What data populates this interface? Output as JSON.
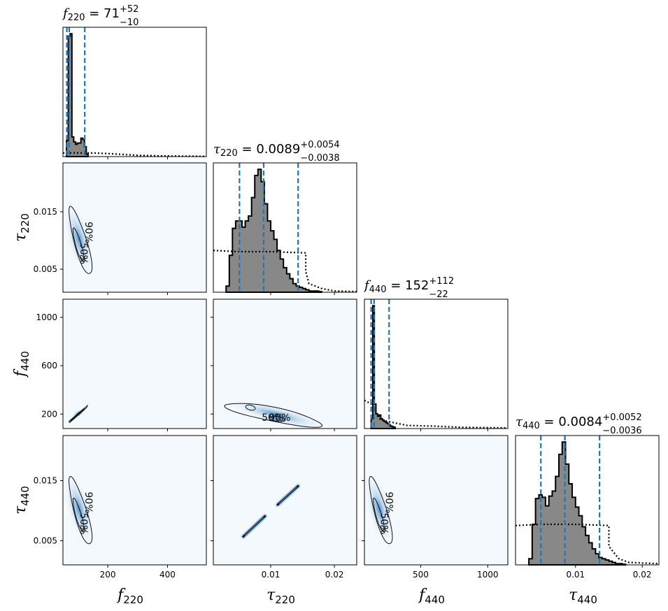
{
  "chart_data": {
    "type": "corner",
    "parameters": [
      {
        "key": "f220",
        "symbol": "f",
        "sub": "220",
        "range": [
          50,
          530
        ],
        "ticks": [
          200,
          400
        ],
        "tick_labels": [
          "200",
          "400"
        ]
      },
      {
        "key": "tau220",
        "symbol": "τ",
        "sub": "220",
        "range": [
          0.001,
          0.0235
        ],
        "ticks": [
          0.01,
          0.02
        ],
        "tick_labels": [
          "0.01",
          "0.02"
        ],
        "yticks": [
          0.005,
          0.015
        ],
        "ytick_labels": [
          "0.005",
          "0.015"
        ]
      },
      {
        "key": "f440",
        "symbol": "f",
        "sub": "440",
        "range": [
          80,
          1150
        ],
        "ticks": [
          500,
          1000
        ],
        "tick_labels": [
          "500",
          "1000"
        ],
        "yticks": [
          200,
          600,
          1000
        ],
        "ytick_labels": [
          "200",
          "600",
          "1000"
        ]
      },
      {
        "key": "tau440",
        "symbol": "τ",
        "sub": "440",
        "range": [
          0.001,
          0.0225
        ],
        "ticks": [
          0.01,
          0.02
        ],
        "tick_labels": [
          "0.01",
          "0.02"
        ],
        "yticks": [
          0.005,
          0.015
        ],
        "ytick_labels": [
          "0.005",
          "0.015"
        ]
      }
    ],
    "titles": [
      {
        "symbol": "f",
        "sub": "220",
        "eq": " = ",
        "value": "71",
        "plus": "+52",
        "minus": "−10"
      },
      {
        "symbol": "τ",
        "sub": "220",
        "eq": " = ",
        "value": "0.0089",
        "plus": "+0.0054",
        "minus": "−0.0038"
      },
      {
        "symbol": "f",
        "sub": "440",
        "eq": " = ",
        "value": "152",
        "plus": "+112",
        "minus": "−22"
      },
      {
        "symbol": "τ",
        "sub": "440",
        "eq": " = ",
        "value": "0.0084",
        "plus": "+0.0052",
        "minus": "−0.0036"
      }
    ],
    "quantiles": [
      [
        63,
        71,
        123
      ],
      [
        0.0051,
        0.0089,
        0.0143
      ],
      [
        130,
        152,
        264
      ],
      [
        0.0048,
        0.0084,
        0.0136
      ]
    ],
    "histograms": [
      {
        "edges_start": 62,
        "bin": 6,
        "counts": [
          0.13,
          0.98,
          1.0,
          0.16,
          0.12,
          0.1,
          0.11,
          0.11,
          0.15,
          0.14,
          0.08,
          0.02
        ]
      },
      {
        "edges_start": 0.003,
        "bin": 0.0005,
        "counts": [
          0.05,
          0.3,
          0.52,
          0.58,
          0.58,
          0.53,
          0.58,
          0.62,
          0.77,
          0.95,
          1.0,
          0.9,
          0.72,
          0.58,
          0.5,
          0.43,
          0.34,
          0.27,
          0.2,
          0.15,
          0.11,
          0.07,
          0.05,
          0.04,
          0.03,
          0.02,
          0.01,
          0.01,
          0.01,
          0.005
        ]
      },
      {
        "edges_start": 130,
        "bin": 12,
        "counts": [
          0.08,
          1.0,
          0.2,
          0.12,
          0.1,
          0.11,
          0.08,
          0.07,
          0.06,
          0.05,
          0.04,
          0.03,
          0.02,
          0.015,
          0.01
        ]
      },
      {
        "edges_start": 0.003,
        "bin": 0.0005,
        "counts": [
          0.05,
          0.33,
          0.54,
          0.57,
          0.55,
          0.48,
          0.56,
          0.6,
          0.72,
          0.9,
          1.0,
          0.82,
          0.66,
          0.55,
          0.47,
          0.4,
          0.31,
          0.24,
          0.18,
          0.13,
          0.09,
          0.06,
          0.05,
          0.04,
          0.03,
          0.02,
          0.01,
          0.01,
          0.005
        ]
      }
    ],
    "priors": [
      {
        "x": [
          50,
          100,
          140,
          200,
          300,
          400,
          530
        ],
        "y": [
          0.03,
          0.03,
          0.03,
          0.025,
          0.01,
          0.005,
          0.002
        ]
      },
      {
        "x": [
          0.001,
          0.005,
          0.01,
          0.0155,
          0.0155,
          0.016,
          0.018,
          0.02,
          0.0235
        ],
        "y": [
          0.34,
          0.33,
          0.33,
          0.32,
          0.17,
          0.07,
          0.03,
          0.01,
          0.005
        ]
      },
      {
        "x": [
          80,
          130,
          150,
          200,
          400,
          600,
          800,
          1150
        ],
        "y": [
          0.23,
          0.2,
          0.15,
          0.07,
          0.025,
          0.02,
          0.01,
          0.005
        ]
      },
      {
        "x": [
          0.001,
          0.005,
          0.01,
          0.015,
          0.015,
          0.0165,
          0.018,
          0.0225
        ],
        "y": [
          0.32,
          0.33,
          0.33,
          0.32,
          0.15,
          0.05,
          0.02,
          0.01
        ]
      }
    ],
    "contour_labels": [
      "50%",
      "90%"
    ],
    "colors": {
      "hist_fill": "#888888",
      "quantile_line": "#1f77b4",
      "density_light": "#f4f9fe",
      "density_dark": "#2f6fb0"
    }
  }
}
